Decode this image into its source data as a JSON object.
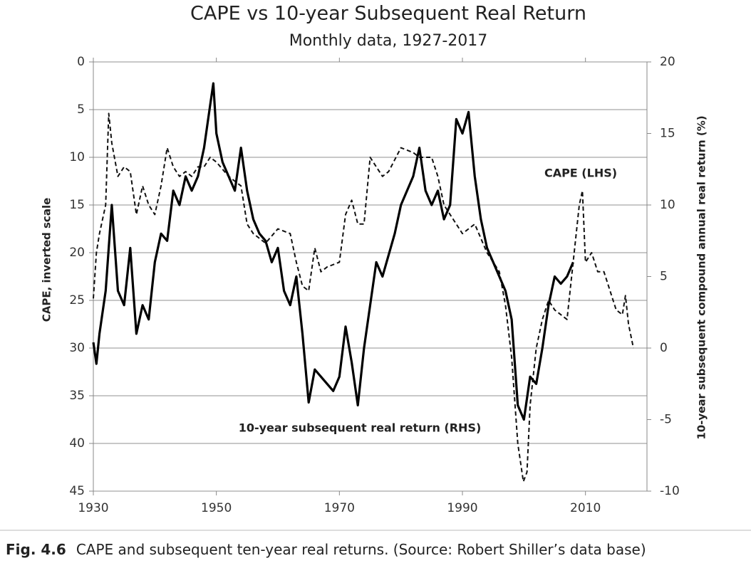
{
  "chart_data": {
    "type": "line",
    "title": "CAPE vs 10-year Subsequent Real Return",
    "subtitle": "Monthly data, 1927-2017",
    "y_label": "CAPE, inverted scale",
    "y2_label": "10-year subsequent compound annual real return (%)",
    "xlim": [
      1930,
      2020
    ],
    "xticks": [
      1930,
      1950,
      1970,
      1990,
      2010
    ],
    "ylim": [
      0,
      45
    ],
    "y_inverted": true,
    "yticks": [
      0,
      5,
      10,
      15,
      20,
      25,
      30,
      35,
      40,
      45
    ],
    "y2lim": [
      -10,
      20
    ],
    "y2ticks": [
      -10,
      -5,
      0,
      5,
      10,
      15,
      20
    ],
    "grid": true,
    "annotations": [
      "CAPE (LHS)",
      "10-year subsequent real return (RHS)"
    ],
    "caption_label": "Fig. 4.6",
    "caption_text": "CAPE and subsequent ten-year real returns. (Source: Robert Shiller’s data base)",
    "series": [
      {
        "name": "CAPE (LHS)",
        "color": "#111111",
        "dashed": true,
        "x": [
          1930,
          1930.5,
          1931,
          1932,
          1932.5,
          1933,
          1934,
          1935,
          1936,
          1937,
          1938,
          1939,
          1940,
          1941,
          1942,
          1943,
          1944,
          1945,
          1946,
          1947,
          1948,
          1949,
          1950,
          1952,
          1954,
          1955,
          1956,
          1958,
          1960,
          1962,
          1963,
          1964,
          1965,
          1966,
          1967,
          1968,
          1970,
          1971,
          1972,
          1973,
          1974,
          1975,
          1976,
          1977,
          1978,
          1980,
          1982,
          1983,
          1985,
          1986,
          1987,
          1988,
          1990,
          1992,
          1994,
          1995,
          1996,
          1997,
          1998,
          1999,
          1999.9,
          2000.5,
          2001,
          2002,
          2003,
          2004,
          2005,
          2006,
          2007,
          2008,
          2009,
          2009.5,
          2010,
          2011,
          2012,
          2013,
          2014,
          2015,
          2016,
          2016.5,
          2017,
          2017.8
        ],
        "values": [
          24.8,
          20,
          18,
          15,
          5.4,
          8.5,
          12,
          11,
          11.5,
          16,
          13,
          15,
          16,
          13,
          9,
          11,
          12,
          11.5,
          12,
          11,
          11,
          10,
          10.5,
          12,
          13,
          17,
          18,
          19,
          17.5,
          18,
          21,
          23.5,
          24,
          19.5,
          22,
          21.5,
          21,
          16,
          14.5,
          17,
          17,
          10,
          11,
          12,
          11.5,
          9,
          9.5,
          10,
          10,
          12,
          15,
          16,
          18,
          17,
          20,
          21,
          22,
          25.5,
          31,
          40,
          44,
          43,
          36,
          30,
          27,
          25,
          26,
          26.5,
          27,
          21,
          15,
          13.5,
          21,
          20,
          22,
          22,
          24,
          26,
          26.5,
          24.5,
          27.5,
          30
        ]
      },
      {
        "name": "10-year subsequent real return (RHS)",
        "color": "#000000",
        "dashed": false,
        "axis": "y2",
        "x": [
          1930,
          1930.5,
          1931,
          1932,
          1933,
          1934,
          1935,
          1936,
          1937,
          1938,
          1939,
          1940,
          1941,
          1942,
          1943,
          1944,
          1945,
          1946,
          1947,
          1948,
          1949,
          1949.5,
          1950,
          1951,
          1952,
          1953,
          1954,
          1955,
          1956,
          1957,
          1958,
          1959,
          1960,
          1961,
          1962,
          1963,
          1964,
          1965,
          1966,
          1967,
          1968,
          1969,
          1970,
          1971,
          1972,
          1973,
          1974,
          1975,
          1976,
          1977,
          1978,
          1979,
          1980,
          1981,
          1982,
          1983,
          1984,
          1985,
          1986,
          1987,
          1988,
          1989,
          1990,
          1991,
          1992,
          1993,
          1994,
          1995,
          1996,
          1997,
          1998,
          1999,
          2000,
          2001,
          2002,
          2003,
          2004,
          2005,
          2006,
          2007,
          2008
        ],
        "values": [
          0.4,
          -1.1,
          1,
          4,
          10,
          4,
          3,
          7,
          1,
          3,
          2,
          6,
          8,
          7.5,
          11,
          10,
          12,
          11,
          12,
          14,
          17,
          18.5,
          15,
          13,
          12,
          11,
          14,
          11,
          9,
          8,
          7.5,
          6,
          7,
          4,
          3,
          5,
          1,
          -3.8,
          -1.5,
          -2,
          -2.5,
          -3,
          -2,
          1.5,
          -1,
          -4,
          0,
          3,
          6,
          5,
          6.5,
          8,
          10,
          11,
          12,
          14,
          11,
          10,
          11,
          9,
          10,
          16,
          15,
          16.5,
          12,
          9,
          7,
          6,
          5,
          4,
          2,
          -4,
          -5,
          -2,
          -2.5,
          0,
          3,
          5,
          4.5,
          5,
          6
        ]
      }
    ]
  }
}
